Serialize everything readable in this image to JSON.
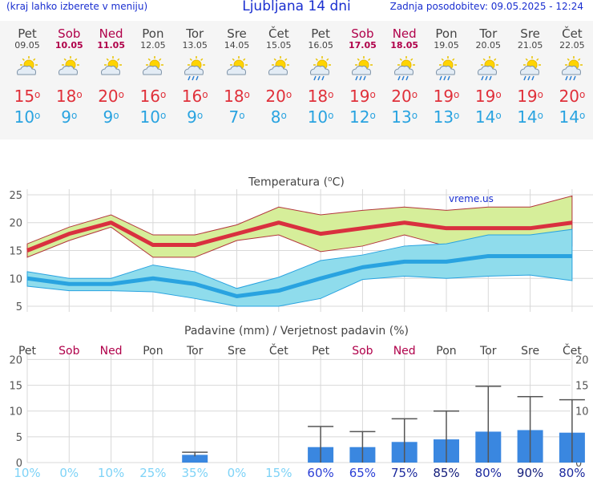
{
  "header": {
    "left_note": "(kraj lahko izberete v meniju)",
    "title": "Ljubljana 14 dni",
    "updated": "Zadnja posodobitev: 09.05.2025 - 12:24"
  },
  "days": [
    {
      "name": "Pet",
      "date": "09.05",
      "weekend": false,
      "icon": "partly-cloudy-icon",
      "tmax": "15",
      "tmin": "10"
    },
    {
      "name": "Sob",
      "date": "10.05",
      "weekend": true,
      "icon": "partly-cloudy-icon",
      "tmax": "18",
      "tmin": "9"
    },
    {
      "name": "Ned",
      "date": "11.05",
      "weekend": true,
      "icon": "partly-cloudy-icon",
      "tmax": "20",
      "tmin": "9"
    },
    {
      "name": "Pon",
      "date": "12.05",
      "weekend": false,
      "icon": "partly-cloudy-icon",
      "tmax": "16",
      "tmin": "10"
    },
    {
      "name": "Tor",
      "date": "13.05",
      "weekend": false,
      "icon": "sun-rain-icon",
      "tmax": "16",
      "tmin": "9"
    },
    {
      "name": "Sre",
      "date": "14.05",
      "weekend": false,
      "icon": "partly-cloudy-icon",
      "tmax": "18",
      "tmin": "7"
    },
    {
      "name": "Čet",
      "date": "15.05",
      "weekend": false,
      "icon": "partly-cloudy-icon",
      "tmax": "20",
      "tmin": "8"
    },
    {
      "name": "Pet",
      "date": "16.05",
      "weekend": false,
      "icon": "sun-rain-icon",
      "tmax": "18",
      "tmin": "10"
    },
    {
      "name": "Sob",
      "date": "17.05",
      "weekend": true,
      "icon": "sun-rain-icon",
      "tmax": "19",
      "tmin": "12"
    },
    {
      "name": "Ned",
      "date": "18.05",
      "weekend": true,
      "icon": "sun-rain-icon",
      "tmax": "20",
      "tmin": "13"
    },
    {
      "name": "Pon",
      "date": "19.05",
      "weekend": false,
      "icon": "sun-rain-icon",
      "tmax": "19",
      "tmin": "13"
    },
    {
      "name": "Tor",
      "date": "20.05",
      "weekend": false,
      "icon": "sun-rain-icon",
      "tmax": "19",
      "tmin": "14"
    },
    {
      "name": "Sre",
      "date": "21.05",
      "weekend": false,
      "icon": "sun-rain-icon",
      "tmax": "19",
      "tmin": "14"
    },
    {
      "name": "Čet",
      "date": "22.05",
      "weekend": false,
      "icon": "sun-rain-icon",
      "tmax": "20",
      "tmin": "14"
    }
  ],
  "degree_symbol": "o",
  "chart_data": [
    {
      "type": "line",
      "title": "Temperatura (°C)",
      "watermark": "vreme.us",
      "categories": [
        "Pet",
        "Sob",
        "Ned",
        "Pon",
        "Tor",
        "Sre",
        "Čet",
        "Pet",
        "Sob",
        "Ned",
        "Pon",
        "Tor",
        "Sre",
        "Čet"
      ],
      "ylim": [
        4,
        26
      ],
      "yticks": [
        5,
        10,
        15,
        20,
        25
      ],
      "series": [
        {
          "role": "max",
          "color": "#d9303f",
          "values": [
            15,
            18,
            20,
            16,
            16,
            18,
            20,
            18,
            19,
            20,
            19,
            19,
            19,
            20
          ]
        },
        {
          "role": "max-band-upper",
          "values": [
            16.2,
            19.2,
            21.4,
            17.8,
            17.8,
            19.6,
            22.8,
            21.4,
            22.2,
            22.8,
            22.2,
            22.8,
            22.8,
            24.8
          ]
        },
        {
          "role": "max-band-lower",
          "values": [
            13.8,
            16.8,
            19.2,
            13.8,
            13.8,
            16.8,
            17.8,
            14.8,
            15.8,
            17.8,
            15.8,
            15.2,
            15.2,
            15.8
          ]
        },
        {
          "role": "min",
          "color": "#29a3e0",
          "values": [
            10,
            9,
            9,
            10,
            9,
            6.8,
            7.8,
            10,
            12,
            13,
            13,
            14,
            14,
            14
          ]
        },
        {
          "role": "min-band-upper",
          "values": [
            11.2,
            10,
            10,
            12.4,
            11.2,
            8.2,
            10.2,
            13.2,
            14.2,
            15.8,
            16.2,
            17.8,
            17.8,
            18.8
          ]
        },
        {
          "role": "min-band-lower",
          "values": [
            8.6,
            7.8,
            7.8,
            7.6,
            6.4,
            5,
            5,
            6.4,
            9.8,
            10.4,
            10,
            10.4,
            10.6,
            9.6
          ]
        }
      ],
      "grid": true
    },
    {
      "type": "bar",
      "title": "Padavine (mm) / Verjetnost padavin (%)",
      "categories": [
        "Pet",
        "Sob",
        "Ned",
        "Pon",
        "Tor",
        "Sre",
        "Čet",
        "Pet",
        "Sob",
        "Ned",
        "Pon",
        "Tor",
        "Sre",
        "Čet"
      ],
      "weekend": [
        false,
        true,
        true,
        false,
        false,
        false,
        false,
        false,
        true,
        true,
        false,
        false,
        false,
        false
      ],
      "ylim": [
        0,
        21
      ],
      "yticks": [
        0,
        5,
        10,
        15,
        20
      ],
      "values": [
        0,
        0,
        0,
        0,
        1.5,
        0,
        0,
        3,
        3,
        4,
        4.5,
        6,
        6.3,
        5.8
      ],
      "error_high": [
        0,
        0,
        0,
        0,
        2,
        0,
        0,
        7,
        6,
        8.5,
        10,
        14.8,
        12.8,
        12.2
      ],
      "error_low": [
        0,
        0,
        0,
        0,
        1.2,
        0,
        0,
        0,
        0,
        0,
        0,
        0,
        0,
        0
      ],
      "probability": [
        "10%",
        "0%",
        "10%",
        "25%",
        "35%",
        "0%",
        "15%",
        "60%",
        "65%",
        "75%",
        "85%",
        "80%",
        "90%",
        "80%"
      ],
      "grid": true
    }
  ]
}
